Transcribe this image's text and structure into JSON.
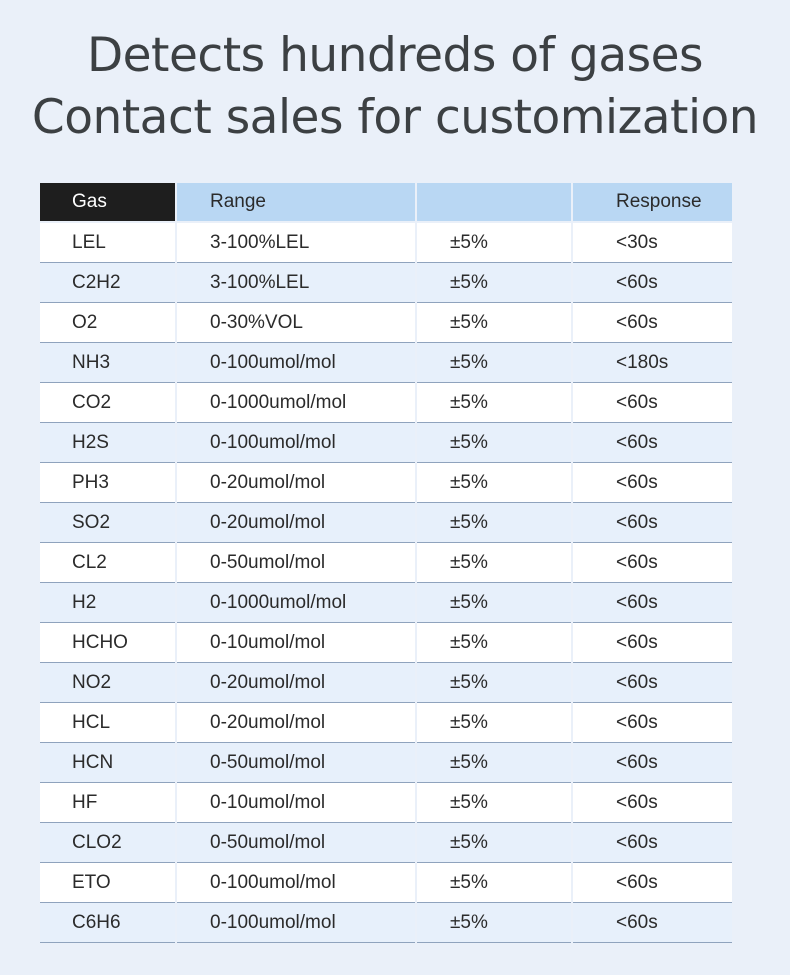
{
  "title": {
    "line1": "Detects hundreds of gases",
    "line2": "Contact sales for customization"
  },
  "table": {
    "headers": [
      "Gas",
      "Range",
      "",
      "Response"
    ],
    "rows": [
      [
        "LEL",
        "3-100%LEL",
        "±5%",
        "<30s"
      ],
      [
        "C2H2",
        "3-100%LEL",
        "±5%",
        "<60s"
      ],
      [
        "O2",
        "0-30%VOL",
        "±5%",
        "<60s"
      ],
      [
        "NH3",
        "0-100umol/mol",
        "±5%",
        "<180s"
      ],
      [
        "CO2",
        "0-1000umol/mol",
        "±5%",
        "<60s"
      ],
      [
        "H2S",
        "0-100umol/mol",
        "±5%",
        "<60s"
      ],
      [
        "PH3",
        "0-20umol/mol",
        "±5%",
        "<60s"
      ],
      [
        "SO2",
        "0-20umol/mol",
        "±5%",
        "<60s"
      ],
      [
        "CL2",
        "0-50umol/mol",
        "±5%",
        "<60s"
      ],
      [
        "H2",
        "0-1000umol/mol",
        "±5%",
        "<60s"
      ],
      [
        "HCHO",
        "0-10umol/mol",
        "±5%",
        "<60s"
      ],
      [
        "NO2",
        "0-20umol/mol",
        "±5%",
        "<60s"
      ],
      [
        "HCL",
        "0-20umol/mol",
        "±5%",
        "<60s"
      ],
      [
        "HCN",
        "0-50umol/mol",
        "±5%",
        "<60s"
      ],
      [
        "HF",
        "0-10umol/mol",
        "±5%",
        "<60s"
      ],
      [
        "CLO2",
        "0-50umol/mol",
        "±5%",
        "<60s"
      ],
      [
        "ETO",
        "0-100umol/mol",
        "±5%",
        "<60s"
      ],
      [
        "C6H6",
        "0-100umol/mol",
        "±5%",
        "<60s"
      ]
    ]
  },
  "colors": {
    "background": "#eaf0f9",
    "header_dark": "#1e1e1e",
    "header_light": "#b9d7f3",
    "row_alt": "#e7f0fb",
    "title_text": "#3c4043"
  }
}
